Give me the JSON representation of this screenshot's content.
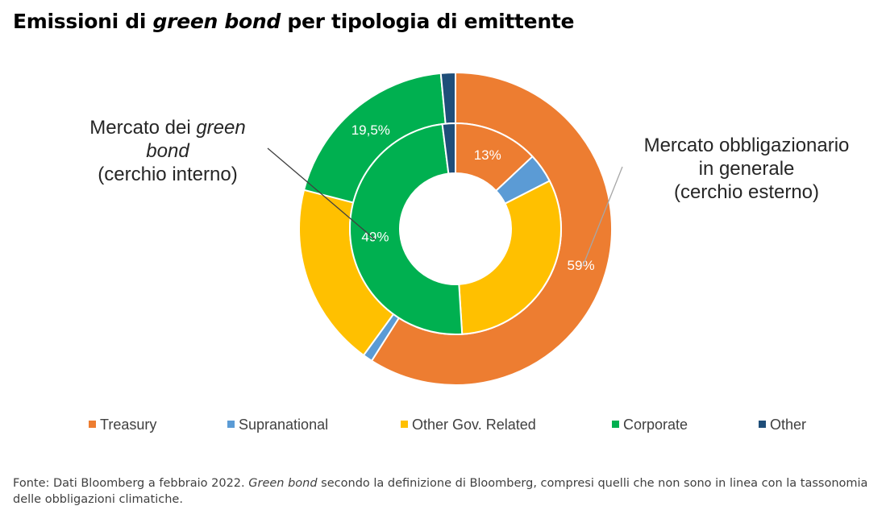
{
  "title": {
    "before": "Emissioni di ",
    "italic": "green bond",
    "after": " per tipologia di emittente"
  },
  "callouts": {
    "inner": {
      "line1_before": "Mercato dei ",
      "line1_italic": "green",
      "line2_italic": "bond",
      "line3": "(cerchio interno)"
    },
    "outer": {
      "line1": "Mercato obbligazionario",
      "line2": "in generale",
      "line3": "(cerchio esterno)"
    }
  },
  "legend": [
    {
      "label": "Treasury",
      "color": "#ED7D31"
    },
    {
      "label": "Supranational",
      "color": "#5B9BD5"
    },
    {
      "label": "Other Gov. Related",
      "color": "#FFC000"
    },
    {
      "label": "Corporate",
      "color": "#00B050"
    },
    {
      "label": "Other",
      "color": "#1F4E79"
    }
  ],
  "chart_data": {
    "type": "pie",
    "subtype": "nested-donut",
    "categories": [
      "Treasury",
      "Supranational",
      "Other Gov. Related",
      "Corporate",
      "Other"
    ],
    "colors": [
      "#ED7D31",
      "#5B9BD5",
      "#FFC000",
      "#00B050",
      "#1F4E79"
    ],
    "series": [
      {
        "ring": "inner",
        "values": [
          13,
          4.5,
          31.5,
          49,
          2
        ],
        "data_labels": [
          "13%",
          "",
          "",
          "49%",
          ""
        ]
      },
      {
        "ring": "outer",
        "values": [
          59,
          1,
          19,
          19.5,
          1.5
        ],
        "data_labels": [
          "59%",
          "",
          "",
          "19,5%",
          ""
        ]
      }
    ],
    "legend_position": "bottom"
  },
  "footnote": {
    "before": "Fonte: Dati Bloomberg a febbraio 2022. ",
    "italic": "Green bond",
    "after": " secondo la definizione di Bloomberg, compresi quelli che non sono in linea con la tassonomia delle obbligazioni climatiche."
  }
}
